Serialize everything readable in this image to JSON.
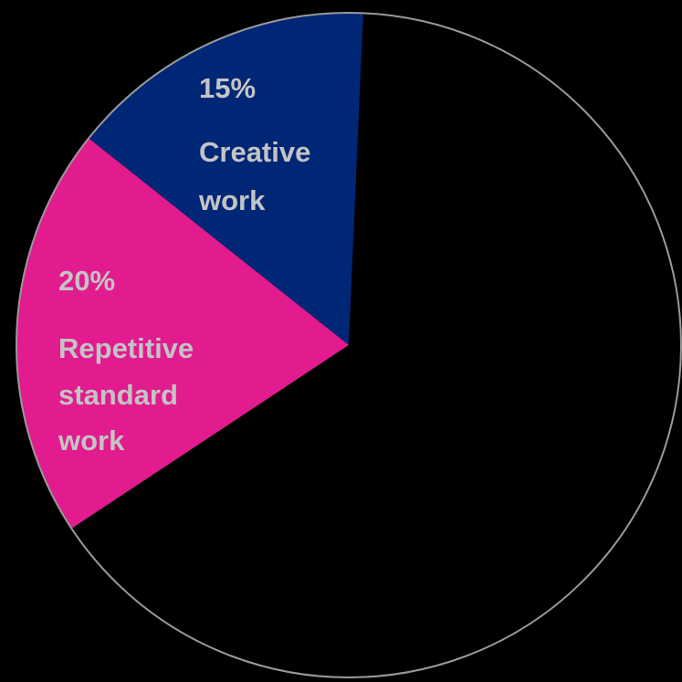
{
  "chart_data": {
    "type": "pie",
    "title": "",
    "slices": [
      {
        "id": "creative",
        "value": 15,
        "percent_label": "15%",
        "category_lines": [
          "Creative",
          "work"
        ],
        "color": "#002776"
      },
      {
        "id": "repetitive",
        "value": 20,
        "percent_label": "20%",
        "category_lines": [
          "Repetitive",
          "standard",
          "work"
        ],
        "color": "#e21b8f"
      },
      {
        "id": "remainder",
        "value": 65,
        "percent_label": "",
        "category_lines": [],
        "color": "#000000"
      }
    ],
    "outline_color": "#9a9a9a",
    "label_color": "#c4c4c4",
    "background": "#000000",
    "legend": "none"
  }
}
